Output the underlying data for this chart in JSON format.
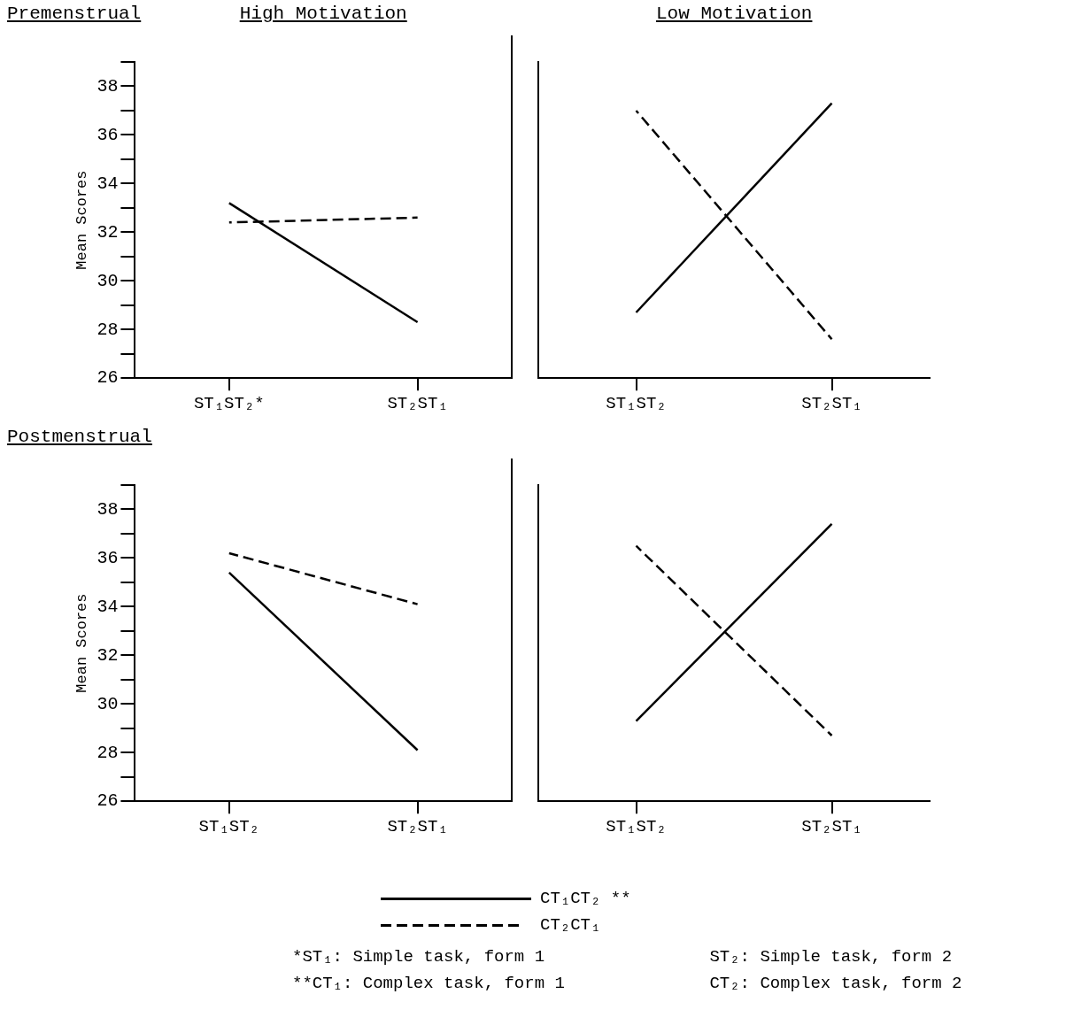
{
  "chart_data": [
    {
      "type": "line",
      "title": "Premenstrual",
      "subtitle": "High Motivation",
      "ylabel": "Mean Scores",
      "categories": [
        "ST₁ST₂*",
        "ST₂ST₁"
      ],
      "series": [
        {
          "color": "#000000",
          "line_style": "solid",
          "values": [
            33.2,
            28.3
          ]
        },
        {
          "color": "#000000",
          "line_style": "dashed",
          "values": [
            32.4,
            32.6
          ]
        }
      ],
      "ylim": [
        26,
        39
      ],
      "yticks": [
        26,
        {
          "value": 27,
          "label": null
        },
        28,
        {
          "value": 29,
          "label": null
        },
        30,
        {
          "value": 31,
          "label": null
        },
        32,
        {
          "value": 33,
          "label": null
        },
        34,
        {
          "value": 35,
          "label": null
        },
        36,
        {
          "value": 37,
          "label": null
        },
        38,
        {
          "value": 39,
          "label": null
        }
      ],
      "marker": "none"
    },
    {
      "type": "line",
      "subtitle": "Low Motivation",
      "categories": [
        "ST₁ST₂",
        "ST₂ST₁"
      ],
      "series": [
        {
          "color": "#000000",
          "line_style": "solid",
          "values": [
            28.7,
            37.3
          ]
        },
        {
          "color": "#000000",
          "line_style": "dashed",
          "values": [
            37.0,
            27.6
          ]
        }
      ],
      "ylim": [
        26,
        39
      ],
      "tick_labels": "x",
      "marker": "none"
    },
    {
      "type": "line",
      "title": "Postmenstrual",
      "ylabel": "Mean Scores",
      "categories": [
        "ST₁ST₂",
        "ST₂ST₁"
      ],
      "series": [
        {
          "color": "#000000",
          "line_style": "solid",
          "values": [
            35.4,
            28.1
          ]
        },
        {
          "color": "#000000",
          "line_style": "dashed",
          "values": [
            36.2,
            34.1
          ]
        }
      ],
      "ylim": [
        26,
        39
      ],
      "yticks": [
        26,
        {
          "value": 27,
          "label": null
        },
        28,
        {
          "value": 29,
          "label": null
        },
        30,
        {
          "value": 31,
          "label": null
        },
        32,
        {
          "value": 33,
          "label": null
        },
        34,
        {
          "value": 35,
          "label": null
        },
        36,
        {
          "value": 37,
          "label": null
        },
        38,
        {
          "value": 39,
          "label": null
        }
      ],
      "marker": "none"
    },
    {
      "type": "line",
      "categories": [
        "ST₁ST₂",
        "ST₂ST₁"
      ],
      "series": [
        {
          "name": "CT₁CT₂ **",
          "color": "#000000",
          "line_style": "solid",
          "values": [
            29.3,
            37.4
          ]
        },
        {
          "name": "CT₂CT₁",
          "color": "#000000",
          "line_style": "dashed",
          "values": [
            36.5,
            28.7
          ]
        }
      ],
      "ylim": [
        26,
        39
      ],
      "tick_labels": "x",
      "marker": "none",
      "legend": "bottom",
      "annotations": [
        "*ST₁: Simple task, form 1",
        "ST₂: Simple task, form 2",
        "**CT₁: Complex task, form 1",
        "CT₂: Complex task, form 2"
      ]
    }
  ]
}
